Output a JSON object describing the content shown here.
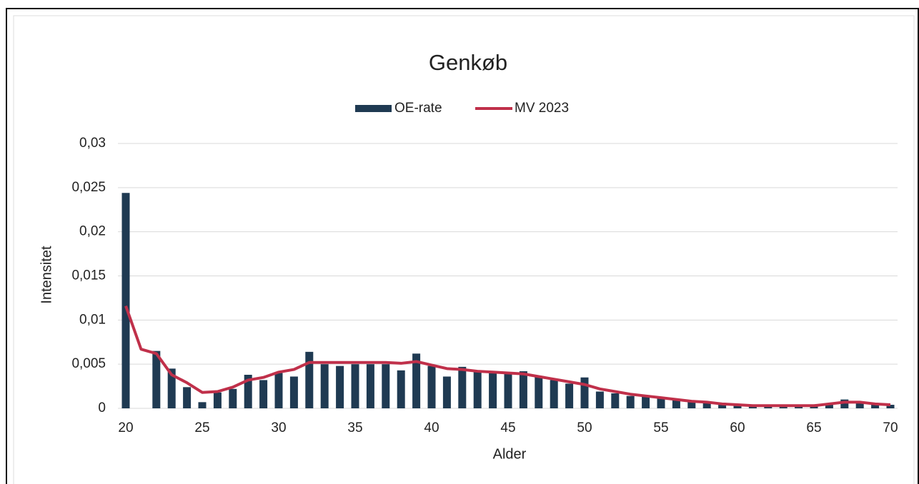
{
  "chart_data": {
    "type": "bar",
    "title": "Genkøb",
    "x_label": "Alder",
    "y_label": "Intensitet",
    "categories": [
      20,
      null,
      null,
      null,
      null,
      25,
      null,
      null,
      null,
      null,
      30,
      null,
      null,
      null,
      null,
      35,
      null,
      null,
      null,
      null,
      40,
      null,
      null,
      null,
      null,
      45,
      null,
      null,
      null,
      null,
      50,
      null,
      null,
      null,
      null,
      55,
      null,
      null,
      null,
      null,
      60,
      null,
      null,
      null,
      null,
      65,
      null,
      null,
      null,
      null,
      70
    ],
    "series": [
      {
        "name": "OE-rate",
        "type": "bar",
        "color": "#1f3a52",
        "values": [
          0.0244,
          0,
          0.0065,
          0.0045,
          0.0024,
          0.0007,
          0.0018,
          0.0022,
          0.0038,
          0.0032,
          0.004,
          0.0036,
          0.0064,
          0.005,
          0.0048,
          0.005,
          0.005,
          0.005,
          0.0043,
          0.0062,
          0.0048,
          0.0036,
          0.0047,
          0.0042,
          0.004,
          0.004,
          0.0042,
          0.0036,
          0.0032,
          0.0028,
          0.0035,
          0.0019,
          0.0017,
          0.0014,
          0.0013,
          0.0011,
          0.001,
          0.0008,
          0.0006,
          0.0004,
          0.0003,
          0.0002,
          0.0002,
          0.0002,
          0.0002,
          0.0002,
          0.0004,
          0.001,
          0.0006,
          0.0004,
          0.0004
        ]
      },
      {
        "name": "MV 2023",
        "type": "line",
        "color": "#c0304a",
        "values": [
          0.0116,
          0.0067,
          0.0062,
          0.0038,
          0.0029,
          0.0018,
          0.0019,
          0.0024,
          0.0032,
          0.0035,
          0.0041,
          0.0044,
          0.0052,
          0.0052,
          0.0052,
          0.0052,
          0.0052,
          0.0052,
          0.0051,
          0.0053,
          0.0049,
          0.0045,
          0.0044,
          0.0042,
          0.0041,
          0.004,
          0.0039,
          0.0036,
          0.0033,
          0.003,
          0.0027,
          0.0022,
          0.0019,
          0.0016,
          0.0014,
          0.0012,
          0.001,
          0.0008,
          0.0007,
          0.0005,
          0.0004,
          0.0003,
          0.0003,
          0.0003,
          0.0003,
          0.0003,
          0.0005,
          0.0007,
          0.0007,
          0.0005,
          0.0004
        ]
      }
    ],
    "ylim": [
      0,
      0.03
    ],
    "yticks": [
      0,
      {
        "value": 0.005,
        "label": "0,005"
      },
      {
        "value": 0.01,
        "label": "0,01"
      },
      {
        "value": 0.015,
        "label": "0,015"
      },
      {
        "value": 0.02,
        "label": "0,02"
      },
      {
        "value": 0.025,
        "label": "0,025"
      },
      {
        "value": 0.03,
        "label": "0,03"
      }
    ],
    "grid": true,
    "legend": "top"
  }
}
